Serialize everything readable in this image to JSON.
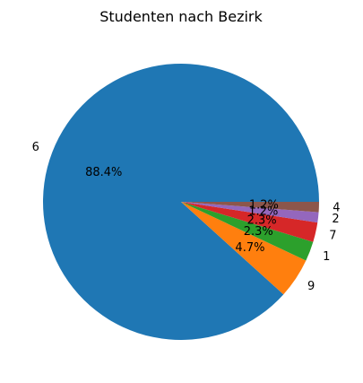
{
  "chart_data": {
    "type": "pie",
    "title": "Studenten nach Bezirk",
    "categories": [
      "6",
      "9",
      "1",
      "7",
      "2",
      "4"
    ],
    "values": [
      88.4,
      4.7,
      2.3,
      2.3,
      1.2,
      1.2
    ],
    "percent_labels": [
      "88.4%",
      "4.7%",
      "2.3%",
      "2.3%",
      "1.2%",
      "1.2%"
    ],
    "colors": [
      "#1f77b4",
      "#ff7f0e",
      "#2ca02c",
      "#d62728",
      "#9467bd",
      "#8c564b"
    ],
    "start_angle_deg": 0,
    "direction": "counterclockwise",
    "legend": "none"
  }
}
